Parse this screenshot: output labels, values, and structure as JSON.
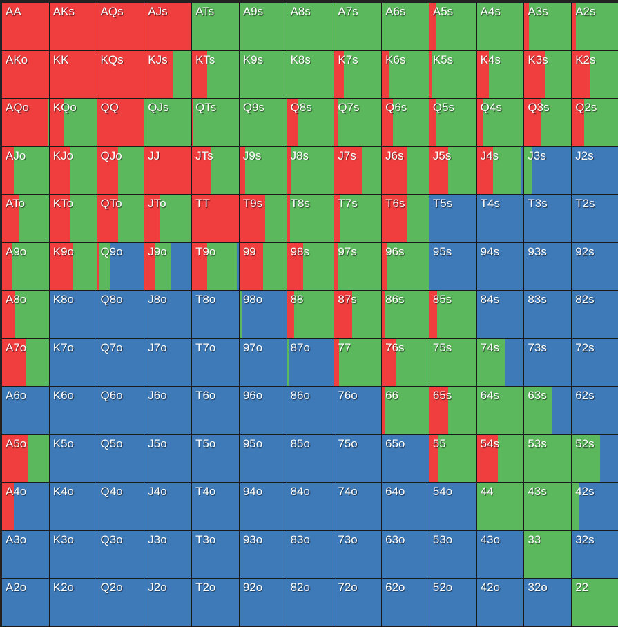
{
  "colors": {
    "raise": "#f03e3e",
    "call": "#5cb85c",
    "fold": "#3f7ab8"
  },
  "rows": [
    [
      [
        "AA",
        1,
        0,
        0
      ],
      [
        "AKs",
        1,
        0,
        0
      ],
      [
        "AQs",
        1,
        0,
        0
      ],
      [
        "AJs",
        1,
        0,
        0
      ],
      [
        "ATs",
        0,
        1,
        0
      ],
      [
        "A9s",
        0,
        1,
        0
      ],
      [
        "A8s",
        0,
        1,
        0
      ],
      [
        "A7s",
        0,
        1,
        0
      ],
      [
        "A6s",
        0,
        1,
        0
      ],
      [
        "A5s",
        0.14,
        0.86,
        0
      ],
      [
        "A4s",
        0,
        1,
        0
      ],
      [
        "A3s",
        0.1,
        0.9,
        0
      ],
      [
        "A2s",
        0.08,
        0.92,
        0
      ]
    ],
    [
      [
        "AKo",
        1,
        0,
        0
      ],
      [
        "KK",
        1,
        0,
        0
      ],
      [
        "KQs",
        1,
        0,
        0
      ],
      [
        "KJs",
        0.62,
        0.38,
        0
      ],
      [
        "KTs",
        0.32,
        0.68,
        0
      ],
      [
        "K9s",
        0,
        1,
        0
      ],
      [
        "K8s",
        0,
        1,
        0
      ],
      [
        "K7s",
        0.2,
        0.8,
        0
      ],
      [
        "K6s",
        0.14,
        0.86,
        0
      ],
      [
        "K5s",
        0.05,
        0.95,
        0
      ],
      [
        "K4s",
        0.25,
        0.75,
        0
      ],
      [
        "K3s",
        0.44,
        0.56,
        0
      ],
      [
        "K2s",
        0.38,
        0.62,
        0
      ]
    ],
    [
      [
        "AQo",
        0.97,
        0.03,
        0
      ],
      [
        "KQo",
        0.3,
        0.7,
        0
      ],
      [
        "QQ",
        1,
        0,
        0
      ],
      [
        "QJs",
        0,
        1,
        0
      ],
      [
        "QTs",
        0.02,
        0.98,
        0
      ],
      [
        "Q9s",
        0,
        1,
        0
      ],
      [
        "Q8s",
        0.22,
        0.78,
        0
      ],
      [
        "Q7s",
        0.08,
        0.92,
        0
      ],
      [
        "Q6s",
        0.24,
        0.76,
        0
      ],
      [
        "Q5s",
        0.14,
        0.86,
        0
      ],
      [
        "Q4s",
        0.12,
        0.88,
        0
      ],
      [
        "Q3s",
        0.36,
        0.64,
        0
      ],
      [
        "Q2s",
        0.26,
        0.74,
        0
      ]
    ],
    [
      [
        "AJo",
        0.25,
        0.75,
        0
      ],
      [
        "KJo",
        0.45,
        0.55,
        0
      ],
      [
        "QJo",
        0.45,
        0.55,
        0
      ],
      [
        "JJ",
        1,
        0,
        0
      ],
      [
        "JTs",
        0.4,
        0.6,
        0
      ],
      [
        "J9s",
        0.12,
        0.88,
        0
      ],
      [
        "J8s",
        0.1,
        0.9,
        0
      ],
      [
        "J7s",
        0.58,
        0.42,
        0
      ],
      [
        "J6s",
        0.55,
        0.45,
        0
      ],
      [
        "J5s",
        0.4,
        0.6,
        0
      ],
      [
        "J4s",
        0.34,
        0.61,
        0.05
      ],
      [
        "J3s",
        0,
        0.15,
        0.85
      ],
      [
        "J2s",
        0,
        0,
        1
      ]
    ],
    [
      [
        "ATo",
        0.37,
        0.63,
        0
      ],
      [
        "KTo",
        0.45,
        0.55,
        0
      ],
      [
        "QTo",
        0.45,
        0.55,
        0
      ],
      [
        "JTo",
        0.32,
        0.68,
        0
      ],
      [
        "TT",
        1,
        0,
        0
      ],
      [
        "T9s",
        0.55,
        0.45,
        0
      ],
      [
        "T8s",
        0.07,
        0.93,
        0
      ],
      [
        "T7s",
        0.12,
        0.88,
        0
      ],
      [
        "T6s",
        0.53,
        0.47,
        0
      ],
      [
        "T5s",
        0,
        0,
        1
      ],
      [
        "T4s",
        0,
        0,
        1
      ],
      [
        "T3s",
        0,
        0,
        1
      ],
      [
        "T2s",
        0,
        0,
        1
      ]
    ],
    [
      [
        "A9o",
        0.2,
        0.8,
        0
      ],
      [
        "K9o",
        0.5,
        0.5,
        0
      ],
      [
        "Q9o",
        0.05,
        0.23,
        0.72
      ],
      [
        "J9o",
        0.21,
        0.35,
        0.44
      ],
      [
        "T9o",
        0.32,
        0.64,
        0.04
      ],
      [
        "99",
        0.5,
        0.5,
        0
      ],
      [
        "98s",
        0.35,
        0.65,
        0
      ],
      [
        "97s",
        0.07,
        0.93,
        0
      ],
      [
        "96s",
        0.1,
        0.9,
        0
      ],
      [
        "95s",
        0,
        0,
        1
      ],
      [
        "94s",
        0,
        0,
        1
      ],
      [
        "93s",
        0,
        0,
        1
      ],
      [
        "92s",
        0,
        0,
        1
      ]
    ],
    [
      [
        "A8o",
        0.28,
        0.72,
        0
      ],
      [
        "K8o",
        0,
        0,
        1
      ],
      [
        "Q8o",
        0,
        0,
        1
      ],
      [
        "J8o",
        0,
        0,
        1
      ],
      [
        "T8o",
        0,
        0,
        1
      ],
      [
        "98o",
        0,
        0.06,
        0.94
      ],
      [
        "88",
        0.16,
        0.84,
        0
      ],
      [
        "87s",
        0.38,
        0.62,
        0
      ],
      [
        "86s",
        0.06,
        0.94,
        0
      ],
      [
        "85s",
        0.17,
        0.83,
        0
      ],
      [
        "84s",
        0,
        0,
        1
      ],
      [
        "83s",
        0,
        0,
        1
      ],
      [
        "82s",
        0,
        0,
        1
      ]
    ],
    [
      [
        "A7o",
        0.5,
        0.5,
        0
      ],
      [
        "K7o",
        0,
        0,
        1
      ],
      [
        "Q7o",
        0,
        0,
        1
      ],
      [
        "J7o",
        0,
        0,
        1
      ],
      [
        "T7o",
        0,
        0,
        1
      ],
      [
        "97o",
        0,
        0,
        1
      ],
      [
        "87o",
        0,
        0.04,
        0.96
      ],
      [
        "77",
        0.1,
        0.9,
        0
      ],
      [
        "76s",
        0.31,
        0.69,
        0
      ],
      [
        "75s",
        0,
        1,
        0
      ],
      [
        "74s",
        0,
        0.6,
        0.4
      ],
      [
        "73s",
        0,
        0,
        1
      ],
      [
        "72s",
        0,
        0,
        1
      ]
    ],
    [
      [
        "A6o",
        0,
        0,
        1
      ],
      [
        "K6o",
        0,
        0,
        1
      ],
      [
        "Q6o",
        0,
        0,
        1
      ],
      [
        "J6o",
        0,
        0,
        1
      ],
      [
        "T6o",
        0,
        0,
        1
      ],
      [
        "96o",
        0,
        0,
        1
      ],
      [
        "86o",
        0,
        0,
        1
      ],
      [
        "76o",
        0,
        0,
        1
      ],
      [
        "66",
        0.05,
        0.95,
        0
      ],
      [
        "65s",
        0.4,
        0.6,
        0
      ],
      [
        "64s",
        0,
        1,
        0
      ],
      [
        "63s",
        0,
        0.6,
        0.4
      ],
      [
        "62s",
        0,
        0,
        1
      ]
    ],
    [
      [
        "A5o",
        0.55,
        0.45,
        0
      ],
      [
        "K5o",
        0,
        0,
        1
      ],
      [
        "Q5o",
        0,
        0,
        1
      ],
      [
        "J5o",
        0,
        0,
        1
      ],
      [
        "T5o",
        0,
        0,
        1
      ],
      [
        "95o",
        0,
        0,
        1
      ],
      [
        "85o",
        0,
        0,
        1
      ],
      [
        "75o",
        0,
        0,
        1
      ],
      [
        "65o",
        0,
        0,
        1
      ],
      [
        "55",
        0.2,
        0.8,
        0
      ],
      [
        "54s",
        0.45,
        0.55,
        0
      ],
      [
        "53s",
        0,
        1,
        0
      ],
      [
        "52s",
        0,
        0.6,
        0.4
      ]
    ],
    [
      [
        "A4o",
        0.25,
        0,
        0.75
      ],
      [
        "K4o",
        0,
        0,
        1
      ],
      [
        "Q4o",
        0,
        0,
        1
      ],
      [
        "J4o",
        0,
        0,
        1
      ],
      [
        "T4o",
        0,
        0,
        1
      ],
      [
        "94o",
        0,
        0,
        1
      ],
      [
        "84o",
        0,
        0,
        1
      ],
      [
        "74o",
        0,
        0,
        1
      ],
      [
        "64o",
        0,
        0,
        1
      ],
      [
        "54o",
        0,
        0,
        1
      ],
      [
        "44",
        0,
        1,
        0
      ],
      [
        "43s",
        0,
        1,
        0
      ],
      [
        "42s",
        0,
        0.15,
        0.85
      ]
    ],
    [
      [
        "A3o",
        0,
        0,
        1
      ],
      [
        "K3o",
        0,
        0,
        1
      ],
      [
        "Q3o",
        0,
        0,
        1
      ],
      [
        "J3o",
        0,
        0,
        1
      ],
      [
        "T3o",
        0,
        0,
        1
      ],
      [
        "93o",
        0,
        0,
        1
      ],
      [
        "83o",
        0,
        0,
        1
      ],
      [
        "73o",
        0,
        0,
        1
      ],
      [
        "63o",
        0,
        0,
        1
      ],
      [
        "53o",
        0,
        0,
        1
      ],
      [
        "43o",
        0,
        0,
        1
      ],
      [
        "33",
        0,
        1,
        0
      ],
      [
        "32s",
        0,
        0,
        1
      ]
    ],
    [
      [
        "A2o",
        0,
        0,
        1
      ],
      [
        "K2o",
        0,
        0,
        1
      ],
      [
        "Q2o",
        0,
        0,
        1
      ],
      [
        "J2o",
        0,
        0,
        1
      ],
      [
        "T2o",
        0,
        0,
        1
      ],
      [
        "92o",
        0,
        0,
        1
      ],
      [
        "82o",
        0,
        0,
        1
      ],
      [
        "72o",
        0,
        0,
        1
      ],
      [
        "62o",
        0,
        0,
        1
      ],
      [
        "52o",
        0,
        0,
        1
      ],
      [
        "42o",
        0,
        0,
        1
      ],
      [
        "32o",
        0,
        0,
        1
      ],
      [
        "22",
        0,
        1,
        0
      ]
    ]
  ]
}
